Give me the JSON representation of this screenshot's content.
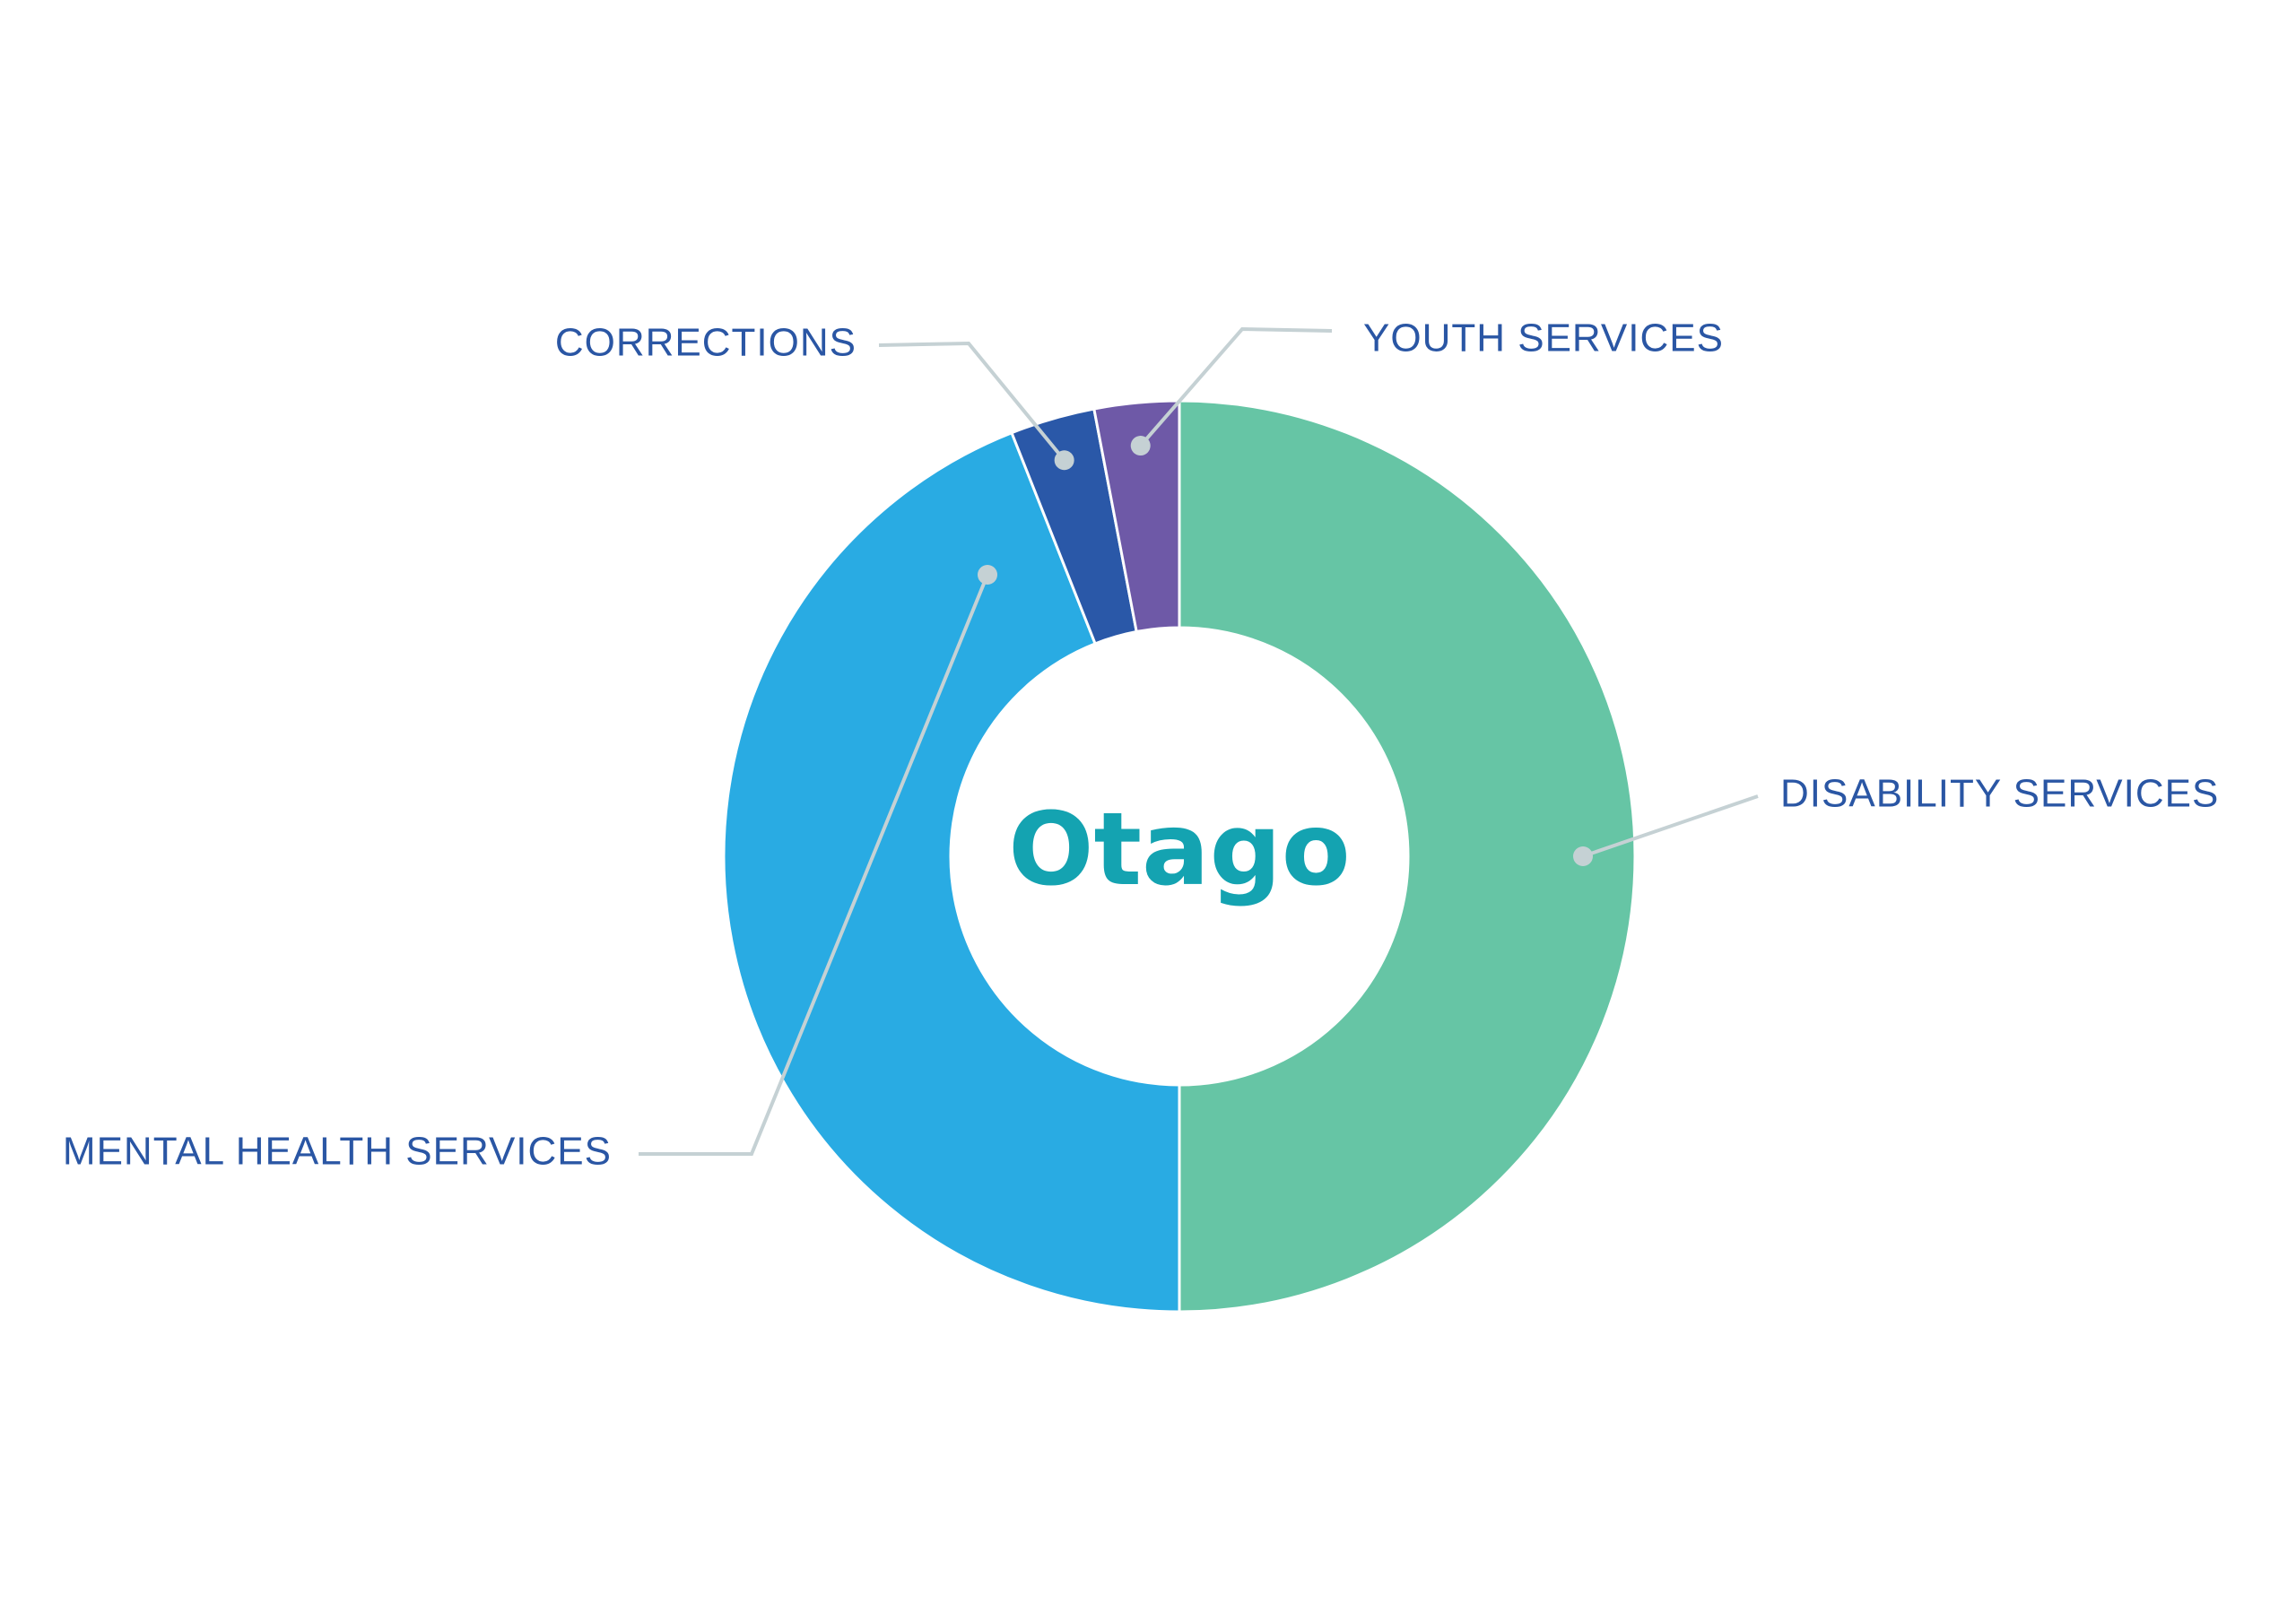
{
  "chart_data": {
    "type": "pie",
    "variant": "donut",
    "center_label": "Otago",
    "categories": [
      "DISABILITY SERVICES",
      "MENTAL HEALTH SERVICES",
      "CORRECTIONS",
      "YOUTH SERVICES"
    ],
    "values": [
      50,
      44,
      3,
      3
    ],
    "colors": [
      "#66c5a5",
      "#29abe3",
      "#2a58a8",
      "#6e59a7"
    ],
    "label_color": "#2a56a4",
    "center_color": "#14a3b1",
    "leader_color": "#c5d1d4",
    "legend": "none"
  }
}
